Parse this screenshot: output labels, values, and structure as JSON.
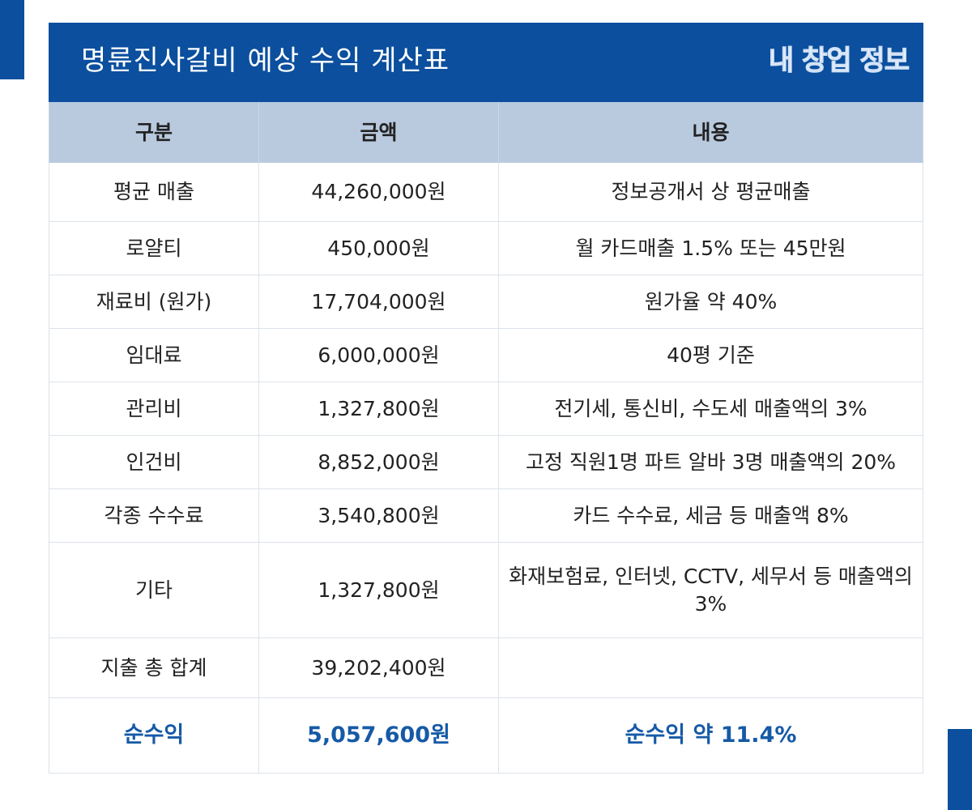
{
  "header": {
    "title": "명륜진사갈비 예상 수익 계산표",
    "logo": "내 창업 정보"
  },
  "table": {
    "headers": [
      "구분",
      "금액",
      "내용"
    ],
    "rows": [
      [
        "평균 매출",
        "44,260,000원",
        "정보공개서 상 평균매출"
      ],
      [
        "로얄티",
        "450,000원",
        "월 카드매출 1.5% 또는 45만원"
      ],
      [
        "재료비 (원가)",
        "17,704,000원",
        "원가율 약 40%"
      ],
      [
        "임대료",
        "6,000,000원",
        "40평 기준"
      ],
      [
        "관리비",
        "1,327,800원",
        "전기세, 통신비, 수도세 매출액의 3%"
      ],
      [
        "인건비",
        "8,852,000원",
        "고정 직원1명 파트 알바 3명 매출액의 20%"
      ],
      [
        "각종 수수료",
        "3,540,800원",
        "카드 수수료, 세금 등 매출액 8%"
      ],
      [
        "기타",
        "1,327,800원",
        "화재보험료, 인터넷, CCTV, 세무서 등 매출액의 3%"
      ],
      [
        "지출 총 합계",
        "39,202,400원"
      ],
      [
        "순수익",
        "5,057,600원",
        "순수익 약 11.4%"
      ]
    ]
  }
}
